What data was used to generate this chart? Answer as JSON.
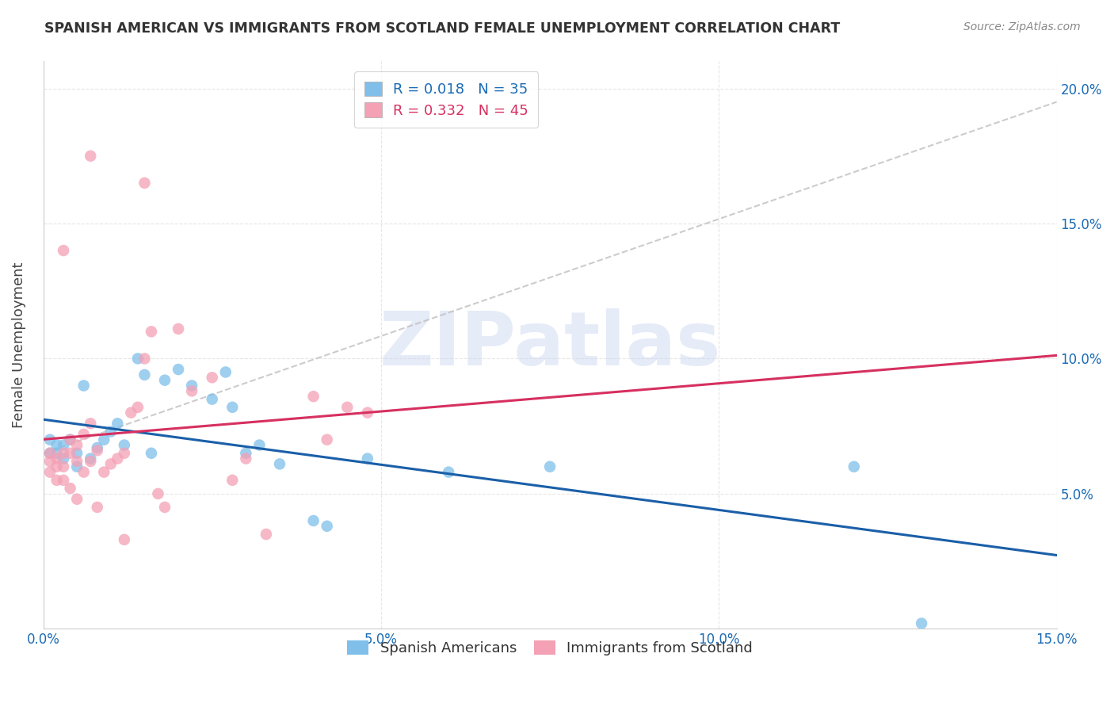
{
  "title": "SPANISH AMERICAN VS IMMIGRANTS FROM SCOTLAND FEMALE UNEMPLOYMENT CORRELATION CHART",
  "source": "Source: ZipAtlas.com",
  "ylabel": "Female Unemployment",
  "xlim": [
    0.0,
    0.15
  ],
  "ylim": [
    0.0,
    0.21
  ],
  "xticks": [
    0.0,
    0.05,
    0.1,
    0.15
  ],
  "xtick_labels": [
    "0.0%",
    "5.0%",
    "10.0%",
    "15.0%"
  ],
  "yticks_right": [
    0.05,
    0.1,
    0.15,
    0.2
  ],
  "ytick_right_labels": [
    "5.0%",
    "10.0%",
    "15.0%",
    "20.0%"
  ],
  "blue_color": "#7fbfea",
  "pink_color": "#f4a0b5",
  "blue_line_color": "#1a5fa8",
  "pink_line_color": "#d63060",
  "dashed_line_color": "#c0c0c0",
  "grid_color": "#e0e0e0",
  "R_blue": 0.018,
  "N_blue": 35,
  "R_pink": 0.332,
  "N_pink": 45,
  "blue_scatter_x": [
    0.001,
    0.001,
    0.002,
    0.002,
    0.003,
    0.003,
    0.004,
    0.005,
    0.005,
    0.006,
    0.007,
    0.008,
    0.009,
    0.01,
    0.011,
    0.012,
    0.014,
    0.015,
    0.016,
    0.018,
    0.02,
    0.022,
    0.025,
    0.027,
    0.028,
    0.03,
    0.032,
    0.035,
    0.04,
    0.042,
    0.048,
    0.06,
    0.075,
    0.12,
    0.13
  ],
  "blue_scatter_y": [
    0.07,
    0.065,
    0.068,
    0.065,
    0.068,
    0.063,
    0.07,
    0.06,
    0.065,
    0.09,
    0.063,
    0.067,
    0.07,
    0.073,
    0.076,
    0.068,
    0.1,
    0.094,
    0.065,
    0.092,
    0.096,
    0.09,
    0.085,
    0.095,
    0.082,
    0.065,
    0.068,
    0.061,
    0.04,
    0.038,
    0.063,
    0.058,
    0.06,
    0.06,
    0.002
  ],
  "pink_scatter_x": [
    0.001,
    0.001,
    0.001,
    0.002,
    0.002,
    0.002,
    0.003,
    0.003,
    0.003,
    0.004,
    0.004,
    0.004,
    0.005,
    0.005,
    0.005,
    0.006,
    0.006,
    0.007,
    0.007,
    0.008,
    0.008,
    0.009,
    0.01,
    0.011,
    0.012,
    0.013,
    0.014,
    0.015,
    0.016,
    0.017,
    0.018,
    0.02,
    0.022,
    0.025,
    0.028,
    0.03,
    0.033,
    0.04,
    0.042,
    0.045,
    0.048,
    0.015,
    0.007,
    0.003,
    0.012
  ],
  "pink_scatter_y": [
    0.065,
    0.062,
    0.058,
    0.063,
    0.06,
    0.055,
    0.065,
    0.06,
    0.055,
    0.07,
    0.065,
    0.052,
    0.068,
    0.062,
    0.048,
    0.058,
    0.072,
    0.076,
    0.062,
    0.066,
    0.045,
    0.058,
    0.061,
    0.063,
    0.065,
    0.08,
    0.082,
    0.1,
    0.11,
    0.05,
    0.045,
    0.111,
    0.088,
    0.093,
    0.055,
    0.063,
    0.035,
    0.086,
    0.07,
    0.082,
    0.08,
    0.165,
    0.175,
    0.14,
    0.033
  ],
  "watermark_text": "ZIPatlas",
  "watermark_color": "#ccd8f0",
  "watermark_alpha": 0.5,
  "watermark_size": 68
}
